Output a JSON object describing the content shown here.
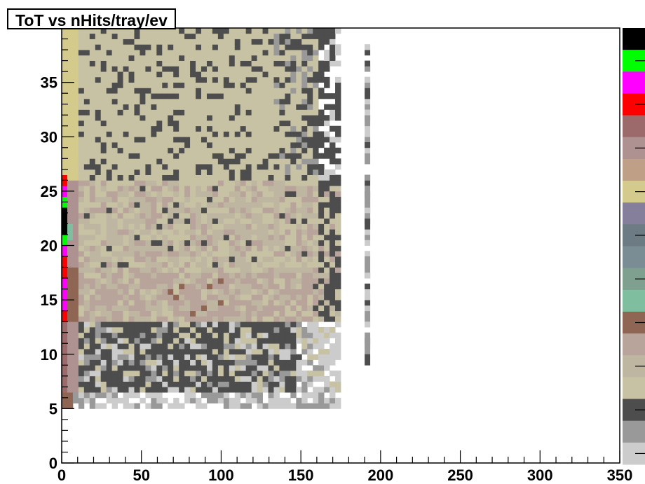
{
  "chart_data": {
    "type": "heatmap",
    "title": "ToT vs nHits/tray/ev",
    "xlabel": "",
    "ylabel": "",
    "xlim": [
      0,
      350
    ],
    "ylim": [
      0,
      40
    ],
    "x_ticks": [
      "0",
      "50",
      "100",
      "150",
      "200",
      "250",
      "300",
      "350"
    ],
    "y_ticks": [
      "0",
      "5",
      "10",
      "15",
      "20",
      "25",
      "30",
      "35"
    ],
    "bin_width_x": 3.5,
    "bin_width_y": 0.5,
    "palette_low_to_high": [
      "#cccccc",
      "#999999",
      "#4d4d4d",
      "#c8c2a4",
      "#bfb6a2",
      "#b8a49a",
      "#8f6554",
      "#7fbfa0",
      "#7f9f8f",
      "#7a8c94",
      "#6c7b84",
      "#857f9c",
      "#d4ca8c",
      "#bf9f86",
      "#ad9291",
      "#9c6a6a",
      "#ff0000",
      "#ff00ff",
      "#00ff00",
      "#000000"
    ],
    "regions": [
      {
        "x": [
          0,
          172
        ],
        "y": [
          5,
          6.5
        ],
        "level": 1,
        "desc": "bottom sparse band"
      },
      {
        "x": [
          0,
          172
        ],
        "y": [
          6,
          13
        ],
        "level": 2,
        "desc": "dark lower band"
      },
      {
        "x": [
          3,
          170
        ],
        "y": [
          12,
          17
        ],
        "level": 5,
        "desc": "pinkish middle band"
      },
      {
        "x": [
          3,
          170
        ],
        "y": [
          17,
          26
        ],
        "level": 4,
        "desc": "tan upper band"
      },
      {
        "x": [
          3,
          160
        ],
        "y": [
          26,
          40
        ],
        "level": 3,
        "desc": "top tan region"
      },
      {
        "x": [
          190,
          193
        ],
        "y": [
          9,
          38
        ],
        "level": 1,
        "desc": "isolated column near 190"
      }
    ]
  }
}
